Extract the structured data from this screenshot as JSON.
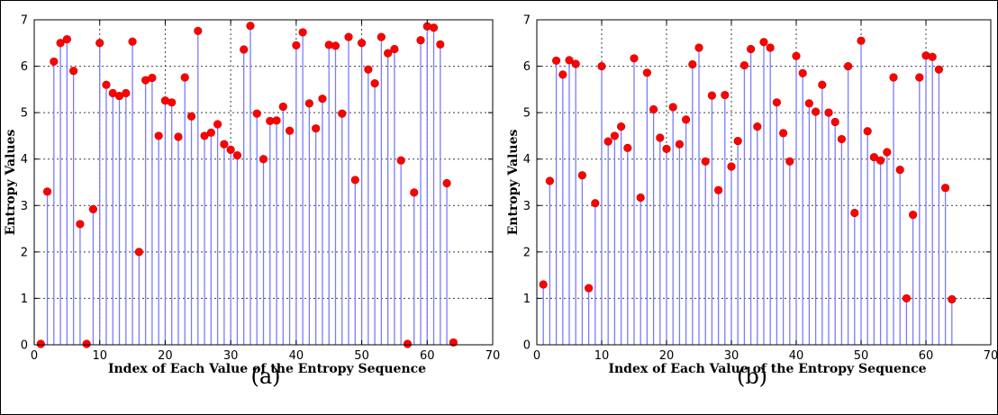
{
  "chart_data": [
    {
      "type": "stem",
      "caption": "(a)",
      "xlabel": "Index of Each Value of the Entropy Sequence",
      "ylabel": "Entropy Values",
      "xlim": [
        0,
        70
      ],
      "ylim": [
        0,
        7
      ],
      "xticks": [
        "0",
        "10",
        "20",
        "30",
        "40",
        "50",
        "60",
        "70"
      ],
      "yticks": [
        "0",
        "1",
        "2",
        "3",
        "4",
        "5",
        "6",
        "7"
      ],
      "grid": true,
      "stem_color": "#7b7bff",
      "marker_color": "#ff0000",
      "x": [
        1,
        2,
        3,
        4,
        5,
        6,
        7,
        8,
        9,
        10,
        11,
        12,
        13,
        14,
        15,
        16,
        17,
        18,
        19,
        20,
        21,
        22,
        23,
        24,
        25,
        26,
        27,
        28,
        29,
        30,
        31,
        32,
        33,
        34,
        35,
        36,
        37,
        38,
        39,
        40,
        41,
        42,
        43,
        44,
        45,
        46,
        47,
        48,
        49,
        50,
        51,
        52,
        53,
        54,
        55,
        56,
        57,
        58,
        59,
        60,
        61,
        62,
        63,
        64
      ],
      "y": [
        0.02,
        3.3,
        6.1,
        6.5,
        6.58,
        5.9,
        2.6,
        0.02,
        2.92,
        6.5,
        5.6,
        5.42,
        5.36,
        5.42,
        6.53,
        2.0,
        5.7,
        5.75,
        4.5,
        5.26,
        5.22,
        4.48,
        5.76,
        4.92,
        6.76,
        4.5,
        4.57,
        4.75,
        4.32,
        4.2,
        4.08,
        6.36,
        6.87,
        4.98,
        4.0,
        4.82,
        4.83,
        5.13,
        4.61,
        6.45,
        6.73,
        5.2,
        4.66,
        5.3,
        6.46,
        6.44,
        4.98,
        6.63,
        3.55,
        6.5,
        5.93,
        5.63,
        6.63,
        6.28,
        6.37,
        3.97,
        0.02,
        3.28,
        6.56,
        6.86,
        6.83,
        6.47,
        3.48,
        0.05
      ]
    },
    {
      "type": "stem",
      "caption": "(b)",
      "xlabel": "Index of Each Value of the Entropy Sequence",
      "ylabel": "Entropy Values",
      "xlim": [
        0,
        70
      ],
      "ylim": [
        0,
        7
      ],
      "xticks": [
        "0",
        "10",
        "20",
        "30",
        "40",
        "50",
        "60",
        "70"
      ],
      "yticks": [
        "0",
        "1",
        "2",
        "3",
        "4",
        "5",
        "6",
        "7"
      ],
      "grid": true,
      "stem_color": "#7b7bff",
      "marker_color": "#ff0000",
      "x": [
        1,
        2,
        3,
        4,
        5,
        6,
        7,
        8,
        9,
        10,
        11,
        12,
        13,
        14,
        15,
        16,
        17,
        18,
        19,
        20,
        21,
        22,
        23,
        24,
        25,
        26,
        27,
        28,
        29,
        30,
        31,
        32,
        33,
        34,
        35,
        36,
        37,
        38,
        39,
        40,
        41,
        42,
        43,
        44,
        45,
        46,
        47,
        48,
        49,
        50,
        51,
        52,
        53,
        54,
        55,
        56,
        57,
        58,
        59,
        60,
        61,
        62,
        63,
        64
      ],
      "y": [
        1.3,
        3.53,
        6.12,
        5.82,
        6.13,
        6.05,
        3.65,
        1.22,
        3.05,
        6.0,
        4.38,
        4.5,
        4.7,
        4.24,
        6.17,
        3.17,
        5.86,
        5.07,
        4.46,
        4.22,
        5.12,
        4.32,
        4.85,
        6.04,
        6.4,
        3.95,
        5.37,
        3.33,
        5.38,
        3.84,
        4.39,
        6.02,
        6.37,
        4.7,
        6.52,
        6.4,
        5.22,
        4.56,
        3.95,
        6.22,
        5.85,
        5.2,
        5.02,
        5.6,
        5.0,
        4.8,
        4.43,
        6.0,
        2.84,
        6.55,
        4.6,
        4.04,
        3.97,
        4.15,
        5.76,
        3.77,
        1.0,
        2.8,
        5.76,
        6.23,
        6.2,
        5.93,
        3.38,
        0.98
      ]
    }
  ]
}
